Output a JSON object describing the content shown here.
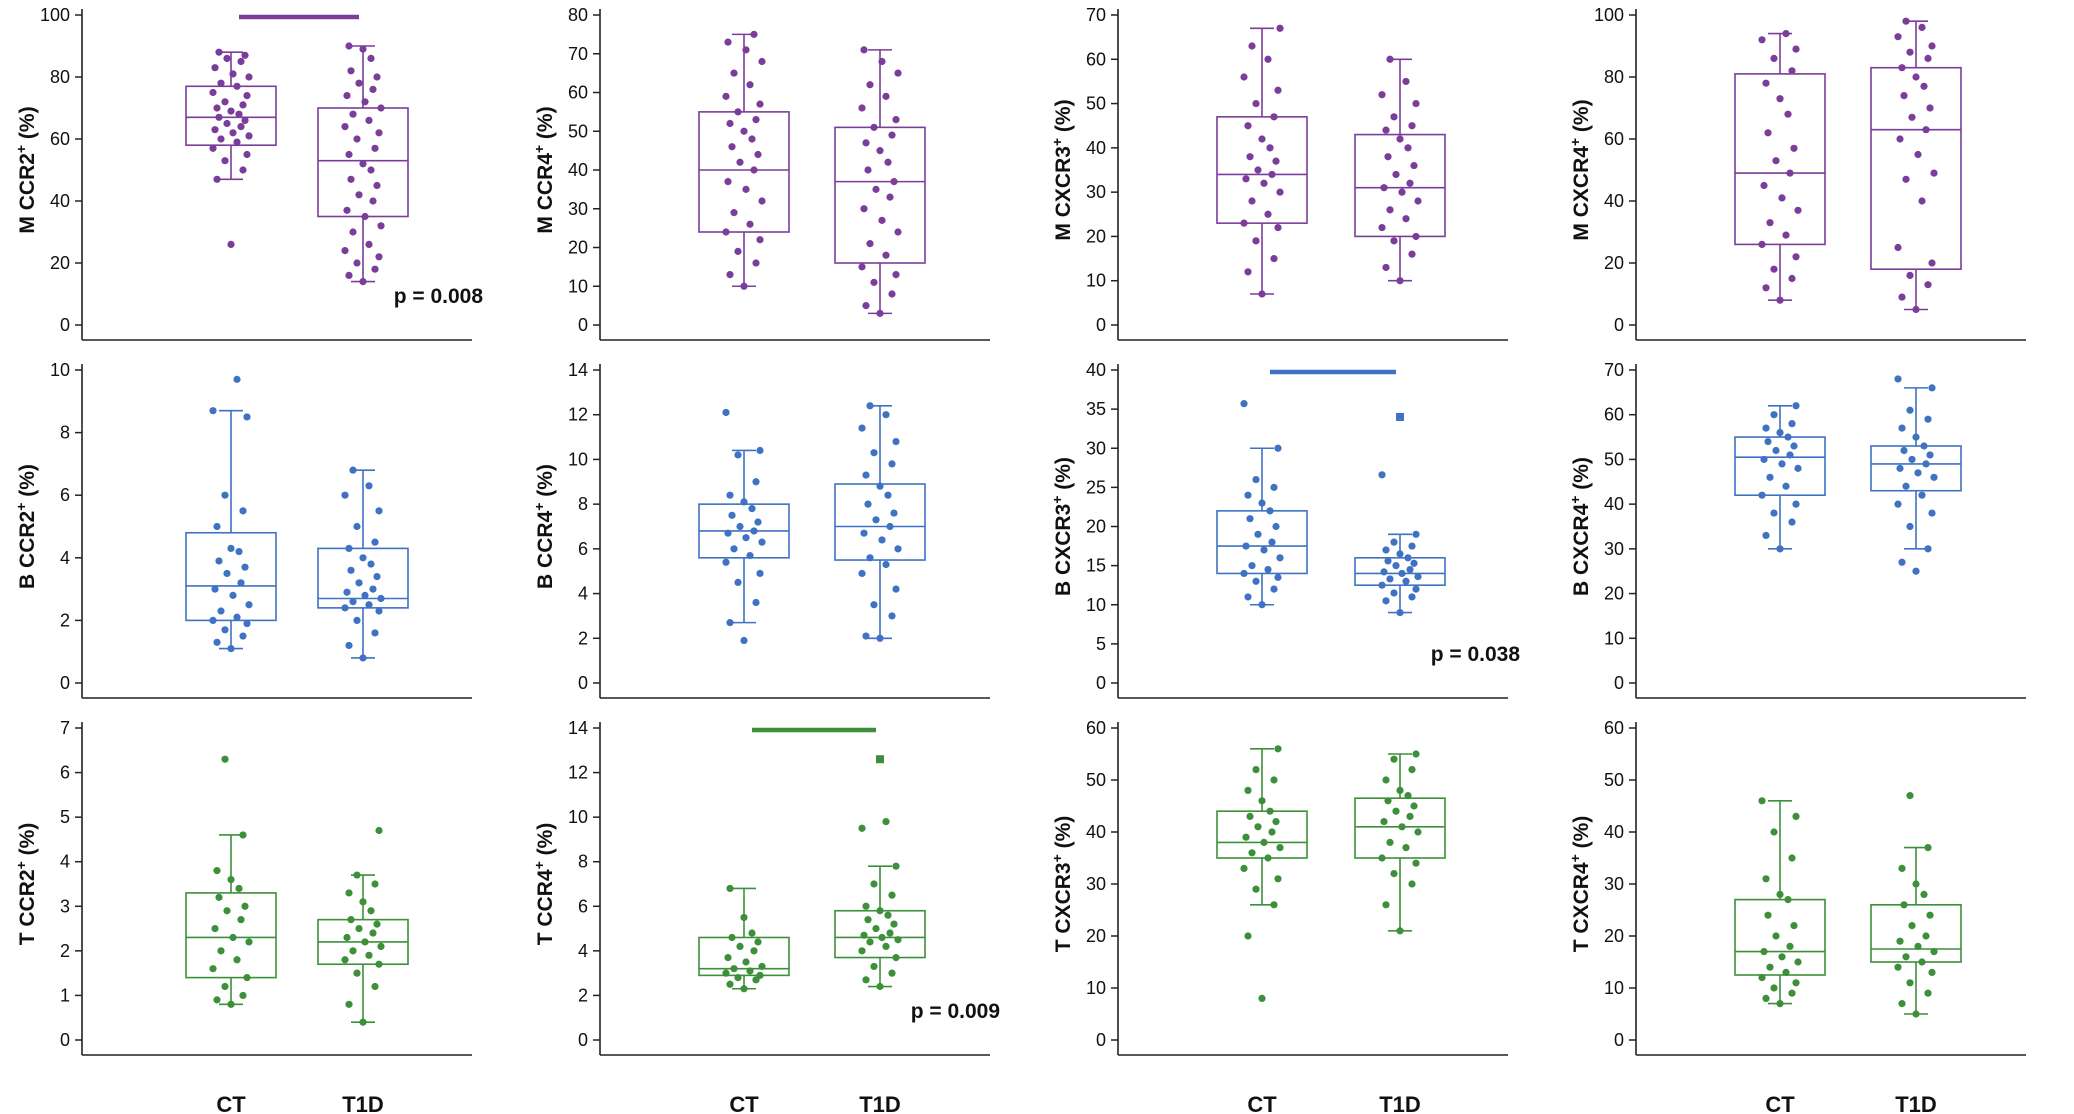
{
  "figure": {
    "categories": [
      "CT",
      "T1D"
    ],
    "colors": {
      "M": "#7a3d9a",
      "B": "#3f72c2",
      "T": "#3d8f3a"
    }
  },
  "chart_data": [
    {
      "type": "box",
      "row": "M",
      "ylabel": "M CCR2",
      "ylabel_sup": "+",
      "ylabel_suffix": " (%)",
      "ylim": [
        0,
        100
      ],
      "yticks": [
        0,
        20,
        40,
        60,
        80,
        100
      ],
      "boxes": [
        {
          "category": "CT",
          "whisker_low": 47,
          "q1": 58,
          "median": 67,
          "q3": 77,
          "whisker_high": 88
        },
        {
          "category": "T1D",
          "whisker_low": 14,
          "q1": 35,
          "median": 53,
          "q3": 70,
          "whisker_high": 90
        }
      ],
      "points": [
        [
          26,
          47,
          50,
          53,
          55,
          57,
          59,
          60,
          61,
          62,
          63,
          64,
          65,
          66,
          67,
          68,
          69,
          70,
          71,
          72,
          74,
          75,
          77,
          78,
          80,
          81,
          83,
          85,
          86,
          87,
          88
        ],
        [
          14,
          16,
          18,
          20,
          22,
          24,
          26,
          30,
          32,
          35,
          37,
          40,
          42,
          45,
          47,
          50,
          52,
          55,
          57,
          60,
          62,
          64,
          66,
          68,
          70,
          72,
          74,
          76,
          78,
          80,
          82,
          86,
          89,
          90
        ]
      ],
      "significance": {
        "p_text": "p = 0.008",
        "bar": true
      }
    },
    {
      "type": "box",
      "row": "M",
      "ylabel": "M CCR4",
      "ylabel_sup": "+",
      "ylabel_suffix": " (%)",
      "ylim": [
        0,
        80
      ],
      "yticks": [
        0,
        10,
        20,
        30,
        40,
        50,
        60,
        70,
        80
      ],
      "boxes": [
        {
          "category": "CT",
          "whisker_low": 10,
          "q1": 24,
          "median": 40,
          "q3": 55,
          "whisker_high": 75
        },
        {
          "category": "T1D",
          "whisker_low": 3,
          "q1": 16,
          "median": 37,
          "q3": 51,
          "whisker_high": 71
        }
      ],
      "points": [
        [
          10,
          13,
          16,
          19,
          22,
          24,
          26,
          29,
          32,
          35,
          37,
          40,
          42,
          44,
          46,
          48,
          50,
          52,
          53,
          55,
          57,
          59,
          62,
          65,
          68,
          71,
          73,
          75
        ],
        [
          3,
          5,
          8,
          11,
          13,
          15,
          18,
          21,
          24,
          27,
          30,
          33,
          35,
          37,
          40,
          42,
          45,
          47,
          49,
          51,
          53,
          56,
          59,
          62,
          65,
          68,
          71
        ]
      ]
    },
    {
      "type": "box",
      "row": "M",
      "ylabel": "M CXCR3",
      "ylabel_sup": "+",
      "ylabel_suffix": " (%)",
      "ylim": [
        0,
        70
      ],
      "yticks": [
        0,
        10,
        20,
        30,
        40,
        50,
        60,
        70
      ],
      "boxes": [
        {
          "category": "CT",
          "whisker_low": 7,
          "q1": 23,
          "median": 34,
          "q3": 47,
          "whisker_high": 67
        },
        {
          "category": "T1D",
          "whisker_low": 10,
          "q1": 20,
          "median": 31,
          "q3": 43,
          "whisker_high": 60
        }
      ],
      "points": [
        [
          7,
          12,
          15,
          19,
          22,
          23,
          25,
          28,
          30,
          32,
          33,
          34,
          35,
          37,
          38,
          40,
          42,
          45,
          47,
          50,
          53,
          56,
          60,
          63,
          67
        ],
        [
          10,
          13,
          16,
          19,
          20,
          22,
          24,
          26,
          28,
          30,
          31,
          32,
          34,
          36,
          38,
          40,
          42,
          44,
          45,
          47,
          50,
          52,
          55,
          60
        ]
      ]
    },
    {
      "type": "box",
      "row": "M",
      "ylabel": "M CXCR4",
      "ylabel_sup": "+",
      "ylabel_suffix": " (%)",
      "ylim": [
        0,
        100
      ],
      "yticks": [
        0,
        20,
        40,
        60,
        80,
        100
      ],
      "boxes": [
        {
          "category": "CT",
          "whisker_low": 8,
          "q1": 26,
          "median": 49,
          "q3": 81,
          "whisker_high": 94
        },
        {
          "category": "T1D",
          "whisker_low": 5,
          "q1": 18,
          "median": 63,
          "q3": 83,
          "whisker_high": 98
        }
      ],
      "points": [
        [
          8,
          12,
          15,
          18,
          22,
          26,
          29,
          33,
          37,
          41,
          45,
          49,
          53,
          57,
          62,
          68,
          73,
          78,
          82,
          86,
          89,
          92,
          94
        ],
        [
          5,
          9,
          13,
          16,
          20,
          25,
          40,
          47,
          49,
          55,
          60,
          63,
          67,
          70,
          74,
          77,
          80,
          83,
          86,
          88,
          90,
          93,
          96,
          98
        ]
      ]
    },
    {
      "type": "box",
      "row": "B",
      "ylabel": "B CCR2",
      "ylabel_sup": "+",
      "ylabel_suffix": " (%)",
      "ylim": [
        0,
        10
      ],
      "yticks": [
        0,
        2,
        4,
        6,
        8,
        10
      ],
      "boxes": [
        {
          "category": "CT",
          "whisker_low": 1.1,
          "q1": 2.0,
          "median": 3.1,
          "q3": 4.8,
          "whisker_high": 8.7
        },
        {
          "category": "T1D",
          "whisker_low": 0.8,
          "q1": 2.4,
          "median": 2.7,
          "q3": 4.3,
          "whisker_high": 6.8
        }
      ],
      "points": [
        [
          1.1,
          1.3,
          1.5,
          1.7,
          1.9,
          2.0,
          2.1,
          2.3,
          2.5,
          2.8,
          3.0,
          3.2,
          3.5,
          3.7,
          3.9,
          4.2,
          4.3,
          5.0,
          5.5,
          6.0,
          8.5,
          8.7,
          9.7
        ],
        [
          0.8,
          1.2,
          1.6,
          2.0,
          2.3,
          2.4,
          2.5,
          2.6,
          2.7,
          2.8,
          2.9,
          3.0,
          3.2,
          3.4,
          3.6,
          3.8,
          4.0,
          4.3,
          4.5,
          5.0,
          5.5,
          6.0,
          6.3,
          6.8
        ]
      ]
    },
    {
      "type": "box",
      "row": "B",
      "ylabel": "B CCR4",
      "ylabel_sup": "+",
      "ylabel_suffix": " (%)",
      "ylim": [
        0,
        14
      ],
      "yticks": [
        0,
        2,
        4,
        6,
        8,
        10,
        12,
        14
      ],
      "boxes": [
        {
          "category": "CT",
          "whisker_low": 2.7,
          "q1": 5.6,
          "median": 6.8,
          "q3": 8.0,
          "whisker_high": 10.4
        },
        {
          "category": "T1D",
          "whisker_low": 2.0,
          "q1": 5.5,
          "median": 7.0,
          "q3": 8.9,
          "whisker_high": 12.4
        }
      ],
      "points": [
        [
          1.9,
          2.7,
          3.6,
          4.5,
          4.9,
          5.4,
          5.7,
          6.0,
          6.3,
          6.5,
          6.7,
          6.8,
          7.0,
          7.2,
          7.5,
          7.8,
          8.1,
          8.4,
          9.0,
          10.2,
          10.4,
          12.1
        ],
        [
          2.0,
          2.1,
          3.0,
          3.5,
          4.2,
          4.9,
          5.3,
          5.6,
          6.0,
          6.4,
          6.7,
          7.0,
          7.3,
          7.6,
          8.0,
          8.4,
          8.8,
          9.3,
          9.8,
          10.3,
          10.8,
          11.4,
          12.0,
          12.4
        ]
      ]
    },
    {
      "type": "box",
      "row": "B",
      "ylabel": "B CXCR3",
      "ylabel_sup": "+",
      "ylabel_suffix": " (%)",
      "ylim": [
        0,
        40
      ],
      "yticks": [
        0,
        5,
        10,
        15,
        20,
        25,
        30,
        35,
        40
      ],
      "boxes": [
        {
          "category": "CT",
          "whisker_low": 10,
          "q1": 14,
          "median": 17.5,
          "q3": 22,
          "whisker_high": 30
        },
        {
          "category": "T1D",
          "whisker_low": 9,
          "q1": 12.5,
          "median": 14,
          "q3": 16,
          "whisker_high": 19
        }
      ],
      "points": [
        [
          10,
          11,
          12,
          13,
          13.5,
          14,
          14.5,
          15,
          16,
          17,
          17.5,
          18,
          19,
          20,
          21,
          22,
          23,
          24,
          25,
          26,
          30,
          35.7
        ],
        [
          9,
          10.5,
          11,
          11.5,
          12,
          12.5,
          13,
          13.3,
          13.6,
          14,
          14.2,
          14.5,
          15,
          15.3,
          15.6,
          16,
          16.5,
          17,
          17.5,
          18,
          19,
          26.6
        ]
      ],
      "outliers": [
        [],
        [
          34
        ]
      ],
      "significance": {
        "p_text": "p = 0.038",
        "bar": true
      }
    },
    {
      "type": "box",
      "row": "B",
      "ylabel": "B CXCR4",
      "ylabel_sup": "+",
      "ylabel_suffix": " (%)",
      "ylim": [
        0,
        70
      ],
      "yticks": [
        0,
        10,
        20,
        30,
        40,
        50,
        60,
        70
      ],
      "boxes": [
        {
          "category": "CT",
          "whisker_low": 30,
          "q1": 42,
          "median": 50.5,
          "q3": 55,
          "whisker_high": 62
        },
        {
          "category": "T1D",
          "whisker_low": 30,
          "q1": 43,
          "median": 49,
          "q3": 53,
          "whisker_high": 66
        }
      ],
      "points": [
        [
          30,
          33,
          36,
          38,
          40,
          42,
          44,
          46,
          48,
          49,
          50,
          51,
          52,
          53,
          54,
          55,
          56,
          57,
          58,
          60,
          62
        ],
        [
          25,
          27,
          30,
          35,
          38,
          40,
          42,
          44,
          46,
          47,
          48,
          49,
          50,
          51,
          52,
          53,
          55,
          57,
          59,
          61,
          66,
          68
        ]
      ]
    },
    {
      "type": "box",
      "row": "T",
      "ylabel": "T CCR2",
      "ylabel_sup": "+",
      "ylabel_suffix": " (%)",
      "ylim": [
        0,
        7
      ],
      "yticks": [
        0,
        1,
        2,
        3,
        4,
        5,
        6,
        7
      ],
      "boxes": [
        {
          "category": "CT",
          "whisker_low": 0.8,
          "q1": 1.4,
          "median": 2.3,
          "q3": 3.3,
          "whisker_high": 4.6
        },
        {
          "category": "T1D",
          "whisker_low": 0.4,
          "q1": 1.7,
          "median": 2.2,
          "q3": 2.7,
          "whisker_high": 3.7
        }
      ],
      "points": [
        [
          0.8,
          0.9,
          1.0,
          1.2,
          1.4,
          1.6,
          1.8,
          2.0,
          2.2,
          2.3,
          2.5,
          2.7,
          2.9,
          3.0,
          3.2,
          3.4,
          3.6,
          3.8,
          4.6,
          6.3
        ],
        [
          0.4,
          0.8,
          1.2,
          1.5,
          1.7,
          1.8,
          1.9,
          2.0,
          2.1,
          2.2,
          2.3,
          2.4,
          2.5,
          2.6,
          2.7,
          2.9,
          3.1,
          3.3,
          3.5,
          3.7,
          4.7
        ]
      ]
    },
    {
      "type": "box",
      "row": "T",
      "ylabel": "T CCR4",
      "ylabel_sup": "+",
      "ylabel_suffix": " (%)",
      "ylim": [
        0,
        14
      ],
      "yticks": [
        0,
        2,
        4,
        6,
        8,
        10,
        12,
        14
      ],
      "boxes": [
        {
          "category": "CT",
          "whisker_low": 2.3,
          "q1": 2.9,
          "median": 3.2,
          "q3": 4.6,
          "whisker_high": 6.8
        },
        {
          "category": "T1D",
          "whisker_low": 2.4,
          "q1": 3.7,
          "median": 4.6,
          "q3": 5.8,
          "whisker_high": 7.8
        }
      ],
      "points": [
        [
          2.3,
          2.5,
          2.7,
          2.8,
          2.9,
          3.0,
          3.1,
          3.2,
          3.3,
          3.5,
          3.7,
          4.0,
          4.2,
          4.4,
          4.6,
          4.8,
          5.5,
          6.8
        ],
        [
          2.4,
          2.7,
          3.0,
          3.3,
          3.7,
          4.0,
          4.2,
          4.4,
          4.5,
          4.6,
          4.7,
          4.8,
          5.0,
          5.2,
          5.4,
          5.6,
          5.8,
          6.0,
          6.5,
          7.0,
          7.8,
          9.5,
          9.8
        ]
      ],
      "outliers": [
        [],
        [
          12.6
        ]
      ],
      "significance": {
        "p_text": "p = 0.009",
        "bar": true
      }
    },
    {
      "type": "box",
      "row": "T",
      "ylabel": "T CXCR3",
      "ylabel_sup": "+",
      "ylabel_suffix": " (%)",
      "ylim": [
        0,
        60
      ],
      "yticks": [
        0,
        10,
        20,
        30,
        40,
        50,
        60
      ],
      "boxes": [
        {
          "category": "CT",
          "whisker_low": 26,
          "q1": 35,
          "median": 38,
          "q3": 44,
          "whisker_high": 56
        },
        {
          "category": "T1D",
          "whisker_low": 21,
          "q1": 35,
          "median": 41,
          "q3": 46.5,
          "whisker_high": 55
        }
      ],
      "points": [
        [
          8,
          20,
          26,
          29,
          31,
          33,
          35,
          36,
          37,
          38,
          39,
          40,
          41,
          42,
          43,
          44,
          46,
          48,
          50,
          52,
          56
        ],
        [
          21,
          26,
          30,
          32,
          34,
          35,
          37,
          38,
          40,
          41,
          42,
          43,
          44,
          45,
          46,
          47,
          48,
          50,
          52,
          54,
          55
        ]
      ]
    },
    {
      "type": "box",
      "row": "T",
      "ylabel": "T CXCR4",
      "ylabel_sup": "+",
      "ylabel_suffix": " (%)",
      "ylim": [
        0,
        60
      ],
      "yticks": [
        0,
        10,
        20,
        30,
        40,
        50,
        60
      ],
      "boxes": [
        {
          "category": "CT",
          "whisker_low": 7,
          "q1": 12.5,
          "median": 17,
          "q3": 27,
          "whisker_high": 46
        },
        {
          "category": "T1D",
          "whisker_low": 5,
          "q1": 15,
          "median": 17.5,
          "q3": 26,
          "whisker_high": 37
        }
      ],
      "points": [
        [
          7,
          8,
          9,
          10,
          11,
          12,
          13,
          14,
          15,
          16,
          17,
          18,
          20,
          22,
          24,
          27,
          28,
          31,
          35,
          40,
          43,
          46
        ],
        [
          5,
          7,
          9,
          11,
          13,
          14,
          15,
          16,
          17,
          18,
          19,
          20,
          22,
          24,
          26,
          28,
          30,
          33,
          37,
          47
        ]
      ]
    }
  ]
}
